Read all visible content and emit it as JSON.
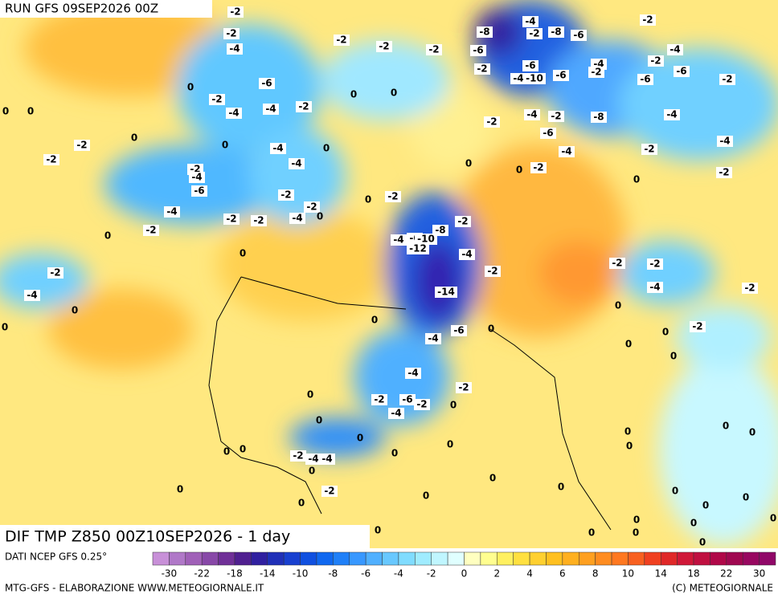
{
  "header": {
    "run": "RUN GFS 09SEP2026 00Z"
  },
  "footer": {
    "title": "DIF TMP Z850 00Z10SEP2026 - 1 day",
    "source": "DATI NCEP GFS 0.25°",
    "credits": "MTG-GFS - ELABORAZIONE WWW.METEOGIORNALE.IT",
    "copyright": "(C) METEOGIORNALE"
  },
  "legend": {
    "ticks": [
      -30,
      -22,
      -18,
      -14,
      -10,
      -8,
      -6,
      -4,
      -2,
      0,
      2,
      4,
      6,
      8,
      10,
      14,
      18,
      22,
      30
    ],
    "colors": [
      "#c890d8",
      "#b078c8",
      "#a060b8",
      "#8848a8",
      "#703098",
      "#502090",
      "#3020a0",
      "#2030b8",
      "#1840d0",
      "#1050e0",
      "#1068f0",
      "#2080f8",
      "#3898ff",
      "#50b0ff",
      "#68c8ff",
      "#80dcff",
      "#a0ecff",
      "#c0f6ff",
      "#e0ffff",
      "#ffffc0",
      "#fffe90",
      "#fff060",
      "#ffe040",
      "#ffd030",
      "#ffc020",
      "#ffb020",
      "#ffa020",
      "#ff8c20",
      "#ff7820",
      "#f86020",
      "#f04020",
      "#e02828",
      "#d01838",
      "#c01040",
      "#b00848",
      "#a00850",
      "#980860",
      "#900868"
    ]
  },
  "map": {
    "contour_labels": [
      -2,
      -2,
      -4,
      -2,
      -2,
      -2,
      -8,
      -4,
      -2,
      -8,
      -6,
      -2,
      -4,
      -2,
      -4,
      -2,
      -6,
      -6,
      -2,
      -4,
      -10,
      -6,
      -6,
      -6,
      -2,
      0,
      -2,
      -6,
      -4,
      -4,
      -2,
      0,
      0,
      -2,
      -4,
      -2,
      -8,
      -4,
      0,
      0,
      0,
      -2,
      0,
      -4,
      0,
      -6,
      -4,
      -2,
      -4,
      -2,
      -2,
      -4,
      -6,
      -4,
      0,
      0,
      -2,
      0,
      -2,
      -2,
      -2,
      0,
      -2,
      -4,
      -2,
      -2,
      -4,
      0,
      -2,
      -2,
      0,
      -8,
      -4,
      -6,
      -10,
      -12,
      -4,
      -2,
      0,
      -2,
      -2,
      -2,
      -14,
      -4,
      -2,
      -4,
      0,
      0,
      0,
      0,
      -6,
      -4,
      0,
      0,
      -2,
      0,
      0,
      -4,
      0,
      -2,
      -2,
      -6,
      -2,
      0,
      -4,
      0,
      0,
      0,
      0,
      0,
      0,
      0,
      0,
      0,
      -2,
      -4,
      -4,
      0,
      0,
      0,
      -2,
      0,
      0,
      0,
      0,
      0,
      0,
      0,
      0,
      0,
      0,
      0,
      0,
      0,
      0
    ]
  }
}
